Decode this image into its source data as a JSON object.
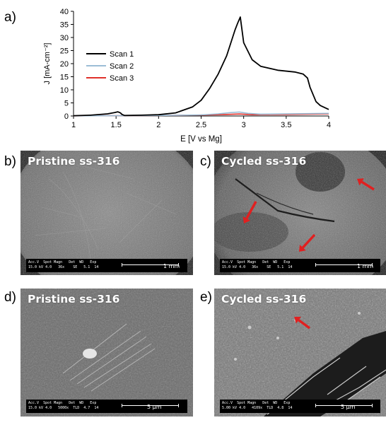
{
  "panels": {
    "a": "a)",
    "b": "b)",
    "c": "c)",
    "d": "d)",
    "e": "e)"
  },
  "chart_data": {
    "type": "line",
    "xlabel": "E [V vs Mg]",
    "ylabel": "J [mA-cm⁻²]",
    "xlim": [
      1,
      4
    ],
    "ylim": [
      0,
      40
    ],
    "xticks": [
      "1",
      "1.5",
      "2",
      "2.5",
      "3",
      "3.5",
      "4"
    ],
    "yticks": [
      "0",
      "5",
      "10",
      "15",
      "20",
      "25",
      "30",
      "35",
      "40"
    ],
    "grid": false,
    "legend_position": "left",
    "series": [
      {
        "name": "Scan 1",
        "color": "#000000",
        "x": [
          1.0,
          1.2,
          1.4,
          1.48,
          1.52,
          1.55,
          1.57,
          1.6,
          1.8,
          2.0,
          2.2,
          2.4,
          2.5,
          2.6,
          2.7,
          2.8,
          2.85,
          2.9,
          2.93,
          2.96,
          3.0,
          3.1,
          3.2,
          3.4,
          3.6,
          3.7,
          3.75,
          3.78,
          3.85,
          3.9,
          4.0
        ],
        "y": [
          0.1,
          0.3,
          0.8,
          1.3,
          1.6,
          1.2,
          0.6,
          0.2,
          0.3,
          0.5,
          1.2,
          3.5,
          6.0,
          10.5,
          16.0,
          23.0,
          28.0,
          33.0,
          35.5,
          37.8,
          28.0,
          21.5,
          19.0,
          17.5,
          16.8,
          16.0,
          14.5,
          11.0,
          5.5,
          4.0,
          2.5
        ]
      },
      {
        "name": "Scan 2",
        "color": "#9bbdd6",
        "x": [
          1.0,
          1.5,
          2.0,
          2.5,
          2.7,
          2.85,
          2.95,
          3.05,
          3.2,
          3.5,
          4.0
        ],
        "y": [
          0.05,
          0.1,
          0.2,
          0.4,
          0.8,
          1.3,
          1.5,
          1.0,
          0.7,
          0.8,
          1.0
        ]
      },
      {
        "name": "Scan 3",
        "color": "#e0302a",
        "x": [
          1.0,
          1.5,
          2.0,
          2.5,
          2.8,
          2.95,
          3.1,
          3.5,
          4.0
        ],
        "y": [
          0.05,
          0.1,
          0.2,
          0.35,
          0.6,
          0.75,
          0.5,
          0.6,
          0.85
        ]
      }
    ]
  },
  "micrographs": [
    {
      "id": "b",
      "title": "Pristine ss-316",
      "info_header": "Acc.V  Spot Magn   Det  WD   Exp",
      "info_values": "15.0 kV 4.0   36x    SE   5.1  14",
      "scale_label": "1 mm"
    },
    {
      "id": "c",
      "title": "Cycled ss-316",
      "info_header": "Acc.V  Spot Magn   Det  WD   Exp",
      "info_values": "15.0 kV 4.0   36x    SE   5.1  14",
      "scale_label": "1 mm"
    },
    {
      "id": "d",
      "title": "Pristine ss-316",
      "info_header": "Acc.V  Spot Magn   Det  WD   Exp",
      "info_values": "15.0 kV 4.0   5000x  TLD  4.7  14",
      "scale_label": "5 µm"
    },
    {
      "id": "e",
      "title": "Cycled ss-316",
      "info_header": "Acc.V  Spot Magn   Det  WD   Exp",
      "info_values": "5.00 kV 4.0   4109x  TLD  4.8  14",
      "scale_label": "5 µm"
    }
  ],
  "colors": {
    "annotation_arrow": "#e02020",
    "sem_background": "#6e6e6e"
  }
}
